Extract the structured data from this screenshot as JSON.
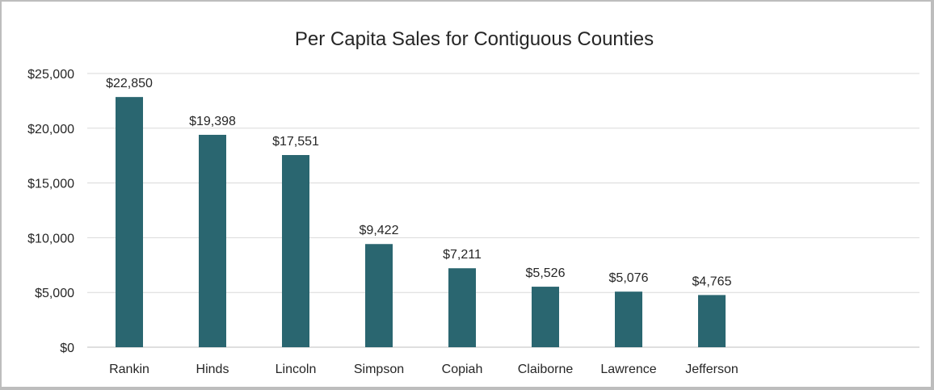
{
  "chart_data": {
    "type": "bar",
    "title": "Per Capita Sales for Contiguous Counties",
    "xlabel": "",
    "ylabel": "",
    "categories": [
      "Rankin",
      "Hinds",
      "Lincoln",
      "Simpson",
      "Copiah",
      "Claiborne",
      "Lawrence",
      "Jefferson"
    ],
    "values": [
      22850,
      19398,
      17551,
      9422,
      7211,
      5526,
      5076,
      4765
    ],
    "data_labels": [
      "$22,850",
      "$19,398",
      "$17,551",
      "$9,422",
      "$7,211",
      "$5,526",
      "$5,076",
      "$4,765"
    ],
    "ylim": [
      0,
      25000
    ],
    "yticks": [
      0,
      5000,
      10000,
      15000,
      20000,
      25000
    ],
    "ytick_labels": [
      "$0",
      "$5,000",
      "$10,000",
      "$15,000",
      "$20,000",
      "$25,000"
    ],
    "grid": true,
    "legend": "none",
    "bar_color": "#2a6670"
  }
}
